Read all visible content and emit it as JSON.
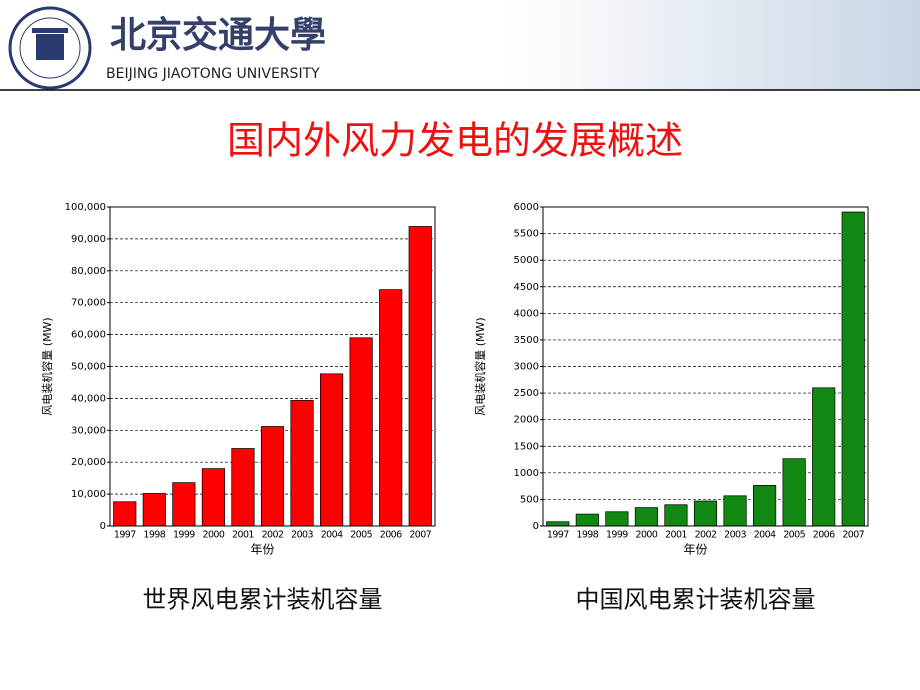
{
  "header": {
    "logo_text": "北京交通大學",
    "university": "BEIJING JIAOTONG UNIVERSITY"
  },
  "slide_title": "国内外风力发电的发展概述",
  "chart_data": [
    {
      "type": "bar",
      "caption": "世界风电累计装机容量",
      "xlabel": "年份",
      "ylabel": "风电装机容量 (MW)",
      "categories": [
        "1997",
        "1998",
        "1999",
        "2000",
        "2001",
        "2002",
        "2003",
        "2004",
        "2005",
        "2006",
        "2007"
      ],
      "values": [
        7600,
        10200,
        13600,
        18000,
        24300,
        31200,
        39400,
        47700,
        59000,
        74100,
        93900
      ],
      "color": "#ff0000",
      "grid": true,
      "ylim": [
        0,
        100000
      ],
      "yticks": [
        0,
        {
          "value": 10000,
          "label": "10,000"
        },
        {
          "value": 20000,
          "label": "20,000"
        },
        {
          "value": 30000,
          "label": "30,000"
        },
        {
          "value": 40000,
          "label": "40,000"
        },
        {
          "value": 50000,
          "label": "50,000"
        },
        {
          "value": 60000,
          "label": "60,000"
        },
        {
          "value": 70000,
          "label": "70,000"
        },
        {
          "value": 80000,
          "label": "80,000"
        },
        {
          "value": 90000,
          "label": "90,000"
        },
        {
          "value": 100000,
          "label": "100,000"
        }
      ]
    },
    {
      "type": "bar",
      "caption": "中国风电累计装机容量",
      "xlabel": "年份",
      "ylabel": "风电装机容量 (MW)",
      "categories": [
        "1997",
        "1998",
        "1999",
        "2000",
        "2001",
        "2002",
        "2003",
        "2004",
        "2005",
        "2006",
        "2007"
      ],
      "values": [
        80,
        224,
        268,
        346,
        400,
        470,
        568,
        764,
        1266,
        2599,
        5906
      ],
      "color": "#118811",
      "grid": true,
      "ylim": [
        0,
        6000
      ],
      "yticks": [
        0,
        500,
        1000,
        1500,
        2000,
        2500,
        3000,
        3500,
        4000,
        4500,
        5000,
        5500,
        6000
      ]
    }
  ]
}
